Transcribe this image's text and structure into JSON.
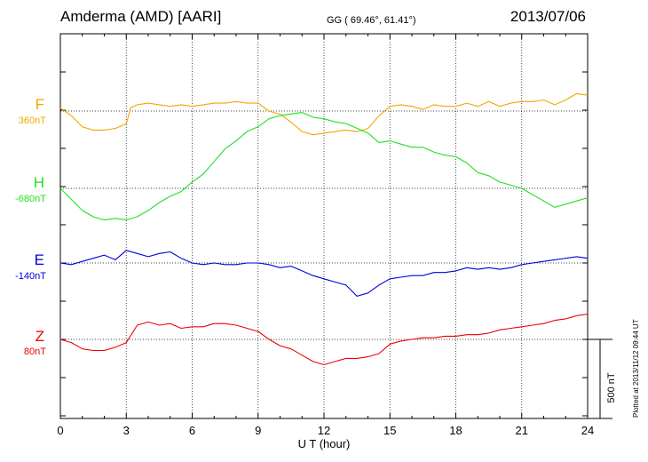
{
  "header": {
    "title": "Amderma (AMD)  [AARI]",
    "coords": "GG ( 69.46°,  61.41°)",
    "date": "2013/07/06"
  },
  "plotted_note": "Plotted at 2013/11/12 09:44 UT",
  "chart_data": {
    "type": "line",
    "xlabel": "U T (hour)",
    "xlim": [
      0,
      24
    ],
    "x_ticks": [
      0,
      3,
      6,
      9,
      12,
      15,
      18,
      21,
      24
    ],
    "scale_bar": {
      "label": "500 nT",
      "value_nT": 500
    },
    "grid": true,
    "series": [
      {
        "name": "F",
        "baseline_label": "360nT",
        "baseline_nT": 360,
        "color": "#f0a800",
        "x": [
          0,
          0.5,
          1,
          1.5,
          2,
          2.5,
          3,
          3.2,
          3.5,
          4,
          4.5,
          5,
          5.5,
          6,
          6.5,
          7,
          7.5,
          8,
          8.5,
          9,
          9.5,
          10,
          10.5,
          11,
          11.5,
          12,
          12.5,
          13,
          13.5,
          14,
          14.5,
          15,
          15.5,
          16,
          16.5,
          17,
          17.5,
          18,
          18.5,
          19,
          19.5,
          20,
          20.5,
          21,
          21.5,
          22,
          22.5,
          23,
          23.5,
          24
        ],
        "values": [
          380,
          330,
          260,
          240,
          240,
          250,
          280,
          380,
          400,
          410,
          400,
          390,
          400,
          390,
          400,
          410,
          410,
          420,
          410,
          410,
          360,
          340,
          290,
          230,
          210,
          220,
          230,
          240,
          230,
          250,
          330,
          390,
          400,
          390,
          370,
          400,
          390,
          390,
          410,
          390,
          420,
          390,
          410,
          420,
          420,
          430,
          400,
          430,
          470,
          460
        ]
      },
      {
        "name": "H",
        "baseline_label": "-680nT",
        "baseline_nT": -680,
        "color": "#20e020",
        "x": [
          0,
          0.5,
          1,
          1.5,
          2,
          2.5,
          3,
          3.5,
          4,
          4.5,
          5,
          5.5,
          6,
          6.5,
          7,
          7.5,
          8,
          8.5,
          9,
          9.5,
          10,
          10.5,
          11,
          11.5,
          12,
          12.5,
          13,
          13.5,
          14,
          14.5,
          15,
          15.5,
          16,
          16.5,
          17,
          17.5,
          18,
          18.5,
          19,
          19.5,
          20,
          20.5,
          21,
          21.5,
          22,
          22.5,
          23,
          23.5,
          24
        ],
        "values": [
          -680,
          -750,
          -820,
          -860,
          -880,
          -870,
          -880,
          -860,
          -820,
          -770,
          -730,
          -700,
          -640,
          -590,
          -510,
          -430,
          -380,
          -320,
          -290,
          -240,
          -220,
          -210,
          -200,
          -230,
          -240,
          -260,
          -270,
          -300,
          -330,
          -390,
          -380,
          -400,
          -420,
          -420,
          -450,
          -470,
          -480,
          -520,
          -580,
          -600,
          -640,
          -660,
          -680,
          -720,
          -760,
          -800,
          -780,
          -760,
          -740
        ]
      },
      {
        "name": "E",
        "baseline_label": "-140nT",
        "baseline_nT": -140,
        "color": "#0000dd",
        "x": [
          0,
          0.5,
          1,
          1.5,
          2,
          2.5,
          3,
          3.5,
          4,
          4.5,
          5,
          5.5,
          6,
          6.5,
          7,
          7.5,
          8,
          8.5,
          9,
          9.5,
          10,
          10.5,
          11,
          11.5,
          12,
          12.5,
          13,
          13.5,
          14,
          14.5,
          15,
          15.5,
          16,
          16.5,
          17,
          17.5,
          18,
          18.5,
          19,
          19.5,
          20,
          20.5,
          21,
          21.5,
          22,
          22.5,
          23,
          23.5,
          24
        ],
        "values": [
          -140,
          -150,
          -130,
          -110,
          -90,
          -120,
          -60,
          -80,
          -100,
          -80,
          -70,
          -110,
          -140,
          -150,
          -140,
          -150,
          -150,
          -140,
          -140,
          -150,
          -170,
          -160,
          -190,
          -220,
          -240,
          -260,
          -280,
          -350,
          -330,
          -280,
          -240,
          -230,
          -220,
          -220,
          -200,
          -200,
          -190,
          -170,
          -180,
          -170,
          -180,
          -170,
          -150,
          -140,
          -130,
          -120,
          -110,
          -100,
          -110
        ]
      },
      {
        "name": "Z",
        "baseline_label": "80nT",
        "baseline_nT": 80,
        "color": "#ee0000",
        "x": [
          0,
          0.5,
          1,
          1.5,
          2,
          2.5,
          3,
          3.5,
          4,
          4.5,
          5,
          5.5,
          6,
          6.5,
          7,
          7.5,
          8,
          8.5,
          9,
          9.5,
          10,
          10.5,
          11,
          11.5,
          12,
          12.5,
          13,
          13.5,
          14,
          14.5,
          15,
          15.5,
          16,
          16.5,
          17,
          17.5,
          18,
          18.5,
          19,
          19.5,
          20,
          20.5,
          21,
          21.5,
          22,
          22.5,
          23,
          23.5,
          24
        ],
        "values": [
          80,
          60,
          20,
          10,
          10,
          30,
          60,
          170,
          190,
          170,
          180,
          150,
          160,
          160,
          180,
          180,
          170,
          150,
          130,
          80,
          40,
          20,
          -20,
          -60,
          -80,
          -60,
          -40,
          -40,
          -30,
          -10,
          50,
          70,
          80,
          90,
          90,
          100,
          100,
          110,
          110,
          120,
          140,
          150,
          160,
          170,
          180,
          200,
          210,
          230,
          240
        ]
      }
    ]
  }
}
